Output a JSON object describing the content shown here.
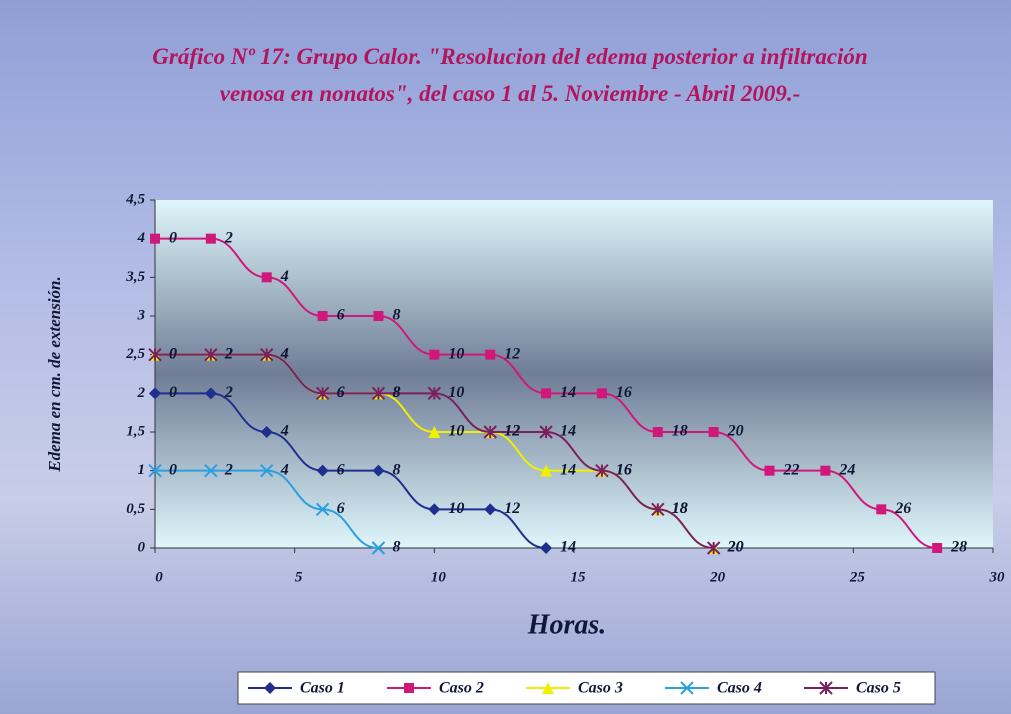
{
  "chart_data": {
    "type": "line",
    "title": "Gráfico Nº 17: Grupo Calor. \"Resolucion del edema posterior a infiltración venosa en nonatos\", del caso 1 al 5. Noviembre - Abril 2009.-",
    "x_label": "Horas.",
    "y_label": "Edema en cm. de extensión.",
    "xlim": [
      0,
      30
    ],
    "xticks": [
      0,
      5,
      10,
      15,
      20,
      25,
      30
    ],
    "ylim": [
      0,
      4.5
    ],
    "yticks": [
      0,
      {
        "value": 0.5,
        "label": "0,5"
      },
      1,
      {
        "value": 1.5,
        "label": "1,5"
      },
      2,
      {
        "value": 2.5,
        "label": "2,5"
      },
      3,
      {
        "value": 3.5,
        "label": "3,5"
      },
      4,
      {
        "value": 4.5,
        "label": "4,5"
      }
    ],
    "legend": "bottom",
    "series": [
      {
        "name": "Caso 1",
        "color": "#1f2f8f",
        "marker": "diamond",
        "x": [
          0,
          2,
          4,
          6,
          8,
          10,
          12,
          14
        ],
        "values": [
          2,
          2,
          1.5,
          1,
          1,
          0.5,
          0.5,
          0
        ]
      },
      {
        "name": "Caso 2",
        "color": "#d0187a",
        "marker": "square",
        "x": [
          0,
          2,
          4,
          6,
          8,
          10,
          12,
          14,
          16,
          18,
          20,
          22,
          24,
          26,
          28
        ],
        "values": [
          4,
          4,
          3.5,
          3,
          3,
          2.5,
          2.5,
          2,
          2,
          1.5,
          1.5,
          1,
          1,
          0.5,
          0
        ]
      },
      {
        "name": "Caso 3",
        "color": "#f0f000",
        "marker": "triangle",
        "x": [
          0,
          2,
          4,
          6,
          8,
          10,
          12,
          14,
          16,
          18,
          20
        ],
        "values": [
          2.5,
          2.5,
          2.5,
          2,
          2,
          1.5,
          1.5,
          1,
          1,
          0.5,
          0
        ]
      },
      {
        "name": "Caso 4",
        "color": "#2aa0e0",
        "marker": "x",
        "x": [
          0,
          2,
          4,
          6,
          8
        ],
        "values": [
          1,
          1,
          1,
          0.5,
          0
        ]
      },
      {
        "name": "Caso 5",
        "color": "#7a1f5f",
        "marker": "star",
        "x": [
          0,
          2,
          4,
          6,
          8,
          10,
          12,
          14,
          16,
          18,
          20
        ],
        "values": [
          2.5,
          2.5,
          2.5,
          2,
          2,
          2,
          1.5,
          1.5,
          1,
          0.5,
          0
        ]
      }
    ]
  }
}
